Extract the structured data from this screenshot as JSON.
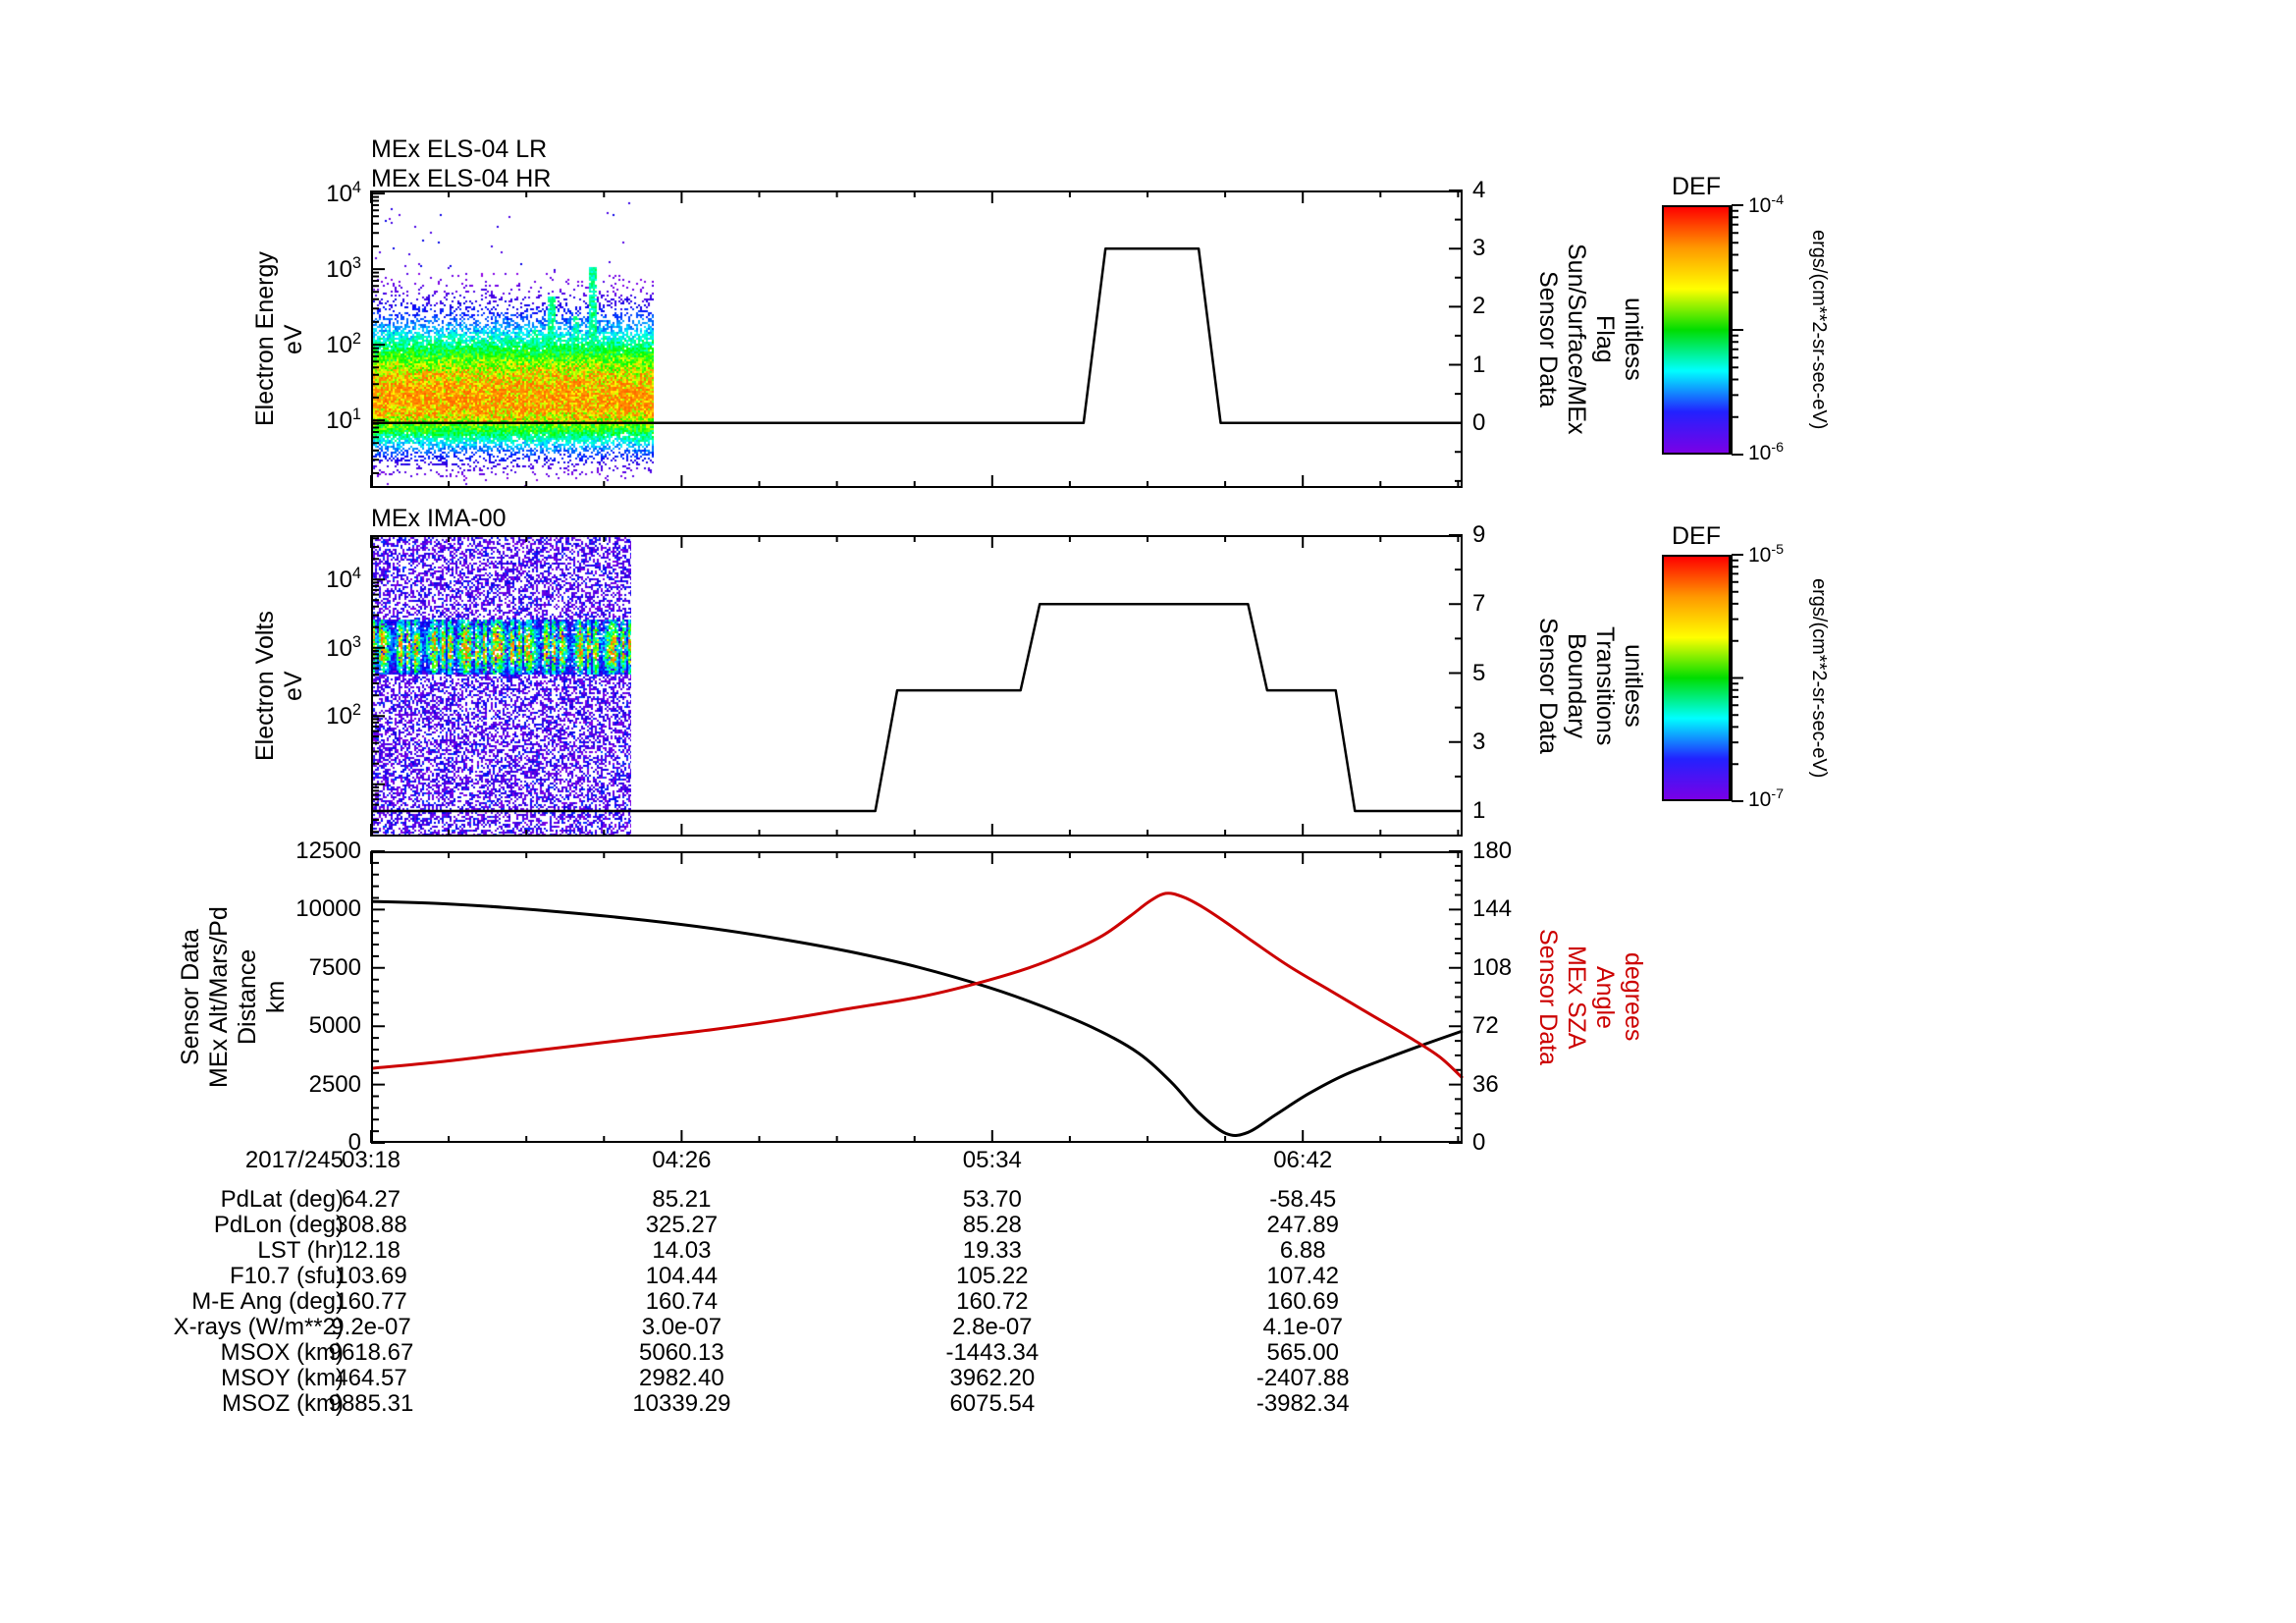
{
  "table": {
    "date_label": "2017/245",
    "rows": [
      {
        "label": "PdLat (deg)",
        "values": [
          "64.27",
          "85.21",
          "53.70",
          "-58.45"
        ]
      },
      {
        "label": "PdLon (deg)",
        "values": [
          "308.88",
          "325.27",
          "85.28",
          "247.89"
        ]
      },
      {
        "label": "LST (hr)",
        "values": [
          "12.18",
          "14.03",
          "19.33",
          "6.88"
        ]
      },
      {
        "label": "F10.7 (sfu)",
        "values": [
          "103.69",
          "104.44",
          "105.22",
          "107.42"
        ]
      },
      {
        "label": "M-E Ang (deg)",
        "values": [
          "160.77",
          "160.74",
          "160.72",
          "160.69"
        ]
      },
      {
        "label": "X-rays (W/m**2)",
        "values": [
          "9.2e-07",
          "3.0e-07",
          "2.8e-07",
          "4.1e-07"
        ]
      },
      {
        "label": "MSOX (km)",
        "values": [
          "9618.67",
          "5060.13",
          "-1443.34",
          "565.00"
        ]
      },
      {
        "label": "MSOY (km)",
        "values": [
          "464.57",
          "2982.40",
          "3962.20",
          "-2407.88"
        ]
      },
      {
        "label": "MSOZ (km)",
        "values": [
          "9885.31",
          "10339.29",
          "6075.54",
          "-3982.34"
        ]
      }
    ]
  },
  "colorbars": [
    {
      "title": "DEF",
      "exp_top": "-4",
      "exp_bottom": "-6",
      "units": "ergs/(cm**2-sr-sec-eV)",
      "gradient": [
        "#ff0000",
        "#ff9900",
        "#ffff00",
        "#00dd00",
        "#00ffff",
        "#2222ff",
        "#7a00e6"
      ]
    },
    {
      "title": "DEF",
      "exp_top": "-5",
      "exp_bottom": "-7",
      "units": "ergs/(cm**2-sr-sec-eV)",
      "gradient": [
        "#ff0000",
        "#ff9900",
        "#ffff00",
        "#00dd00",
        "#00ffff",
        "#2222ff",
        "#7a00e6"
      ]
    }
  ],
  "chart_data": [
    {
      "id": "els",
      "type": "heatmap",
      "titles": [
        "MEx ELS-04 LR",
        "MEx ELS-04 HR"
      ],
      "x_hours_range": [
        3.3,
        7.283
      ],
      "x_ticks": [
        {
          "t": 3.3,
          "label": "03:18"
        },
        {
          "t": 4.4333,
          "label": "04:26"
        },
        {
          "t": 5.5667,
          "label": "05:34"
        },
        {
          "t": 6.7,
          "label": "06:42"
        }
      ],
      "y_left": {
        "title": "Electron Energy\neV",
        "scale": "log",
        "unit": "eV",
        "labeled_decades": [
          1,
          2,
          3,
          4
        ],
        "log_range": [
          0.105,
          4.04
        ]
      },
      "y_right": {
        "title": "Sensor Data\nSun/Surface/MEx\nFlag\nunitless",
        "range": [
          -1.12,
          4
        ],
        "ticks": [
          0,
          1,
          2,
          3,
          4
        ]
      },
      "spectrogram": {
        "t_start": 3.3,
        "t_end": 4.33,
        "peak_logE": 1.28,
        "description": "yellow-green band 10-100 eV with cyan vertical streaks, sparse blue-purple halo",
        "colormap": "rainbow",
        "seed": 7
      },
      "flag_line": {
        "name": "Sun/Surface/MEx Flag",
        "color": "#000000",
        "points": [
          [
            3.3,
            0
          ],
          [
            5.9,
            0
          ],
          [
            5.98,
            3
          ],
          [
            6.32,
            3
          ],
          [
            6.4,
            0
          ],
          [
            7.283,
            0
          ]
        ]
      }
    },
    {
      "id": "ima",
      "type": "heatmap",
      "title": "MEx IMA-00",
      "y_left": {
        "title": "Electron Volts\neV",
        "scale": "log",
        "unit": "eV",
        "labeled_decades": [
          2,
          3,
          4
        ],
        "log_range": [
          0.233,
          4.65
        ]
      },
      "y_right": {
        "title": "Sensor Data\nBoundary\nTransitions\nunitless",
        "range": [
          0.26,
          9
        ],
        "ticks": [
          1,
          3,
          5,
          7,
          9
        ]
      },
      "spectrogram": {
        "t_start": 3.3,
        "t_end": 4.25,
        "band_logE": [
          2.62,
          3.42
        ],
        "description": "bright striped red/green band near 1000-2000 eV over dense blue-purple noise",
        "colormap": "rainbow",
        "seed": 13
      },
      "boundary_line": {
        "name": "Boundary Transitions",
        "color": "#000000",
        "points": [
          [
            3.3,
            1
          ],
          [
            5.14,
            1
          ],
          [
            5.22,
            4.5
          ],
          [
            5.67,
            4.5
          ],
          [
            5.74,
            7
          ],
          [
            6.5,
            7
          ],
          [
            6.57,
            4.5
          ],
          [
            6.82,
            4.5
          ],
          [
            6.89,
            1
          ],
          [
            7.283,
            1
          ]
        ]
      }
    },
    {
      "id": "ephemeris",
      "type": "line",
      "y_left": {
        "title": "Sensor Data\nMEx Alt/Mars/Pd\nDistance\nkm",
        "range": [
          0,
          12500
        ],
        "ticks": [
          0,
          2500,
          5000,
          7500,
          10000,
          12500
        ]
      },
      "y_right": {
        "title": "Sensor Data\nMEx SZA\nAngle\ndegrees",
        "range": [
          0,
          180
        ],
        "ticks": [
          0,
          36,
          72,
          108,
          144,
          180
        ],
        "color": "#cc0000"
      },
      "series": [
        {
          "name": "mex-distance",
          "axis": "left",
          "color": "#000000",
          "points": [
            [
              3.3,
              10350
            ],
            [
              3.55,
              10260
            ],
            [
              3.8,
              10080
            ],
            [
              4.05,
              9840
            ],
            [
              4.3,
              9540
            ],
            [
              4.55,
              9180
            ],
            [
              4.8,
              8730
            ],
            [
              5.05,
              8190
            ],
            [
              5.3,
              7520
            ],
            [
              5.55,
              6680
            ],
            [
              5.75,
              5850
            ],
            [
              5.95,
              4850
            ],
            [
              6.1,
              3850
            ],
            [
              6.22,
              2600
            ],
            [
              6.32,
              1300
            ],
            [
              6.42,
              400
            ],
            [
              6.5,
              450
            ],
            [
              6.6,
              1200
            ],
            [
              6.72,
              2100
            ],
            [
              6.85,
              2900
            ],
            [
              7.0,
              3600
            ],
            [
              7.15,
              4250
            ],
            [
              7.283,
              4800
            ]
          ]
        },
        {
          "name": "mex-sza",
          "axis": "right",
          "color": "#cc0000",
          "points": [
            [
              3.3,
              46
            ],
            [
              3.55,
              50
            ],
            [
              3.8,
              55
            ],
            [
              4.05,
              60
            ],
            [
              4.3,
              65
            ],
            [
              4.55,
              70
            ],
            [
              4.8,
              76
            ],
            [
              5.05,
              83
            ],
            [
              5.3,
              90
            ],
            [
              5.5,
              98
            ],
            [
              5.7,
              108
            ],
            [
              5.85,
              118
            ],
            [
              5.97,
              128
            ],
            [
              6.07,
              140
            ],
            [
              6.14,
              149
            ],
            [
              6.2,
              154
            ],
            [
              6.26,
              152
            ],
            [
              6.33,
              146
            ],
            [
              6.42,
              136
            ],
            [
              6.52,
              124
            ],
            [
              6.65,
              109
            ],
            [
              6.8,
              94
            ],
            [
              6.95,
              79
            ],
            [
              7.1,
              64
            ],
            [
              7.2,
              53
            ],
            [
              7.283,
              40
            ]
          ]
        }
      ]
    }
  ]
}
